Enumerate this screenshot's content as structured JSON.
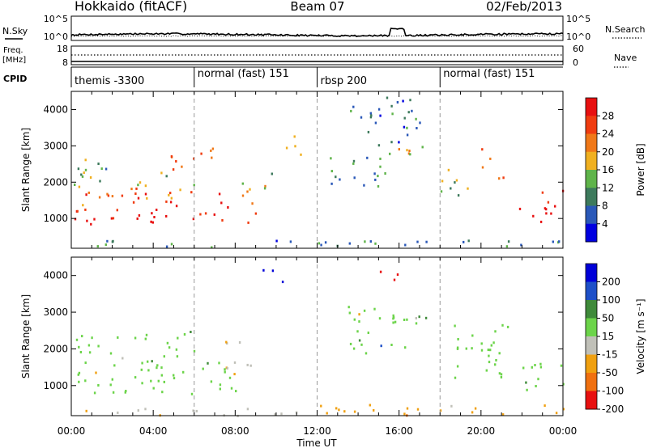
{
  "header": {
    "station": "Hokkaido (fitACF)",
    "beam": "Beam 07",
    "date": "02/Feb/2013"
  },
  "strips": {
    "nsky_label": "N.Sky",
    "nsky_ticks": [
      "10^5",
      "10^0"
    ],
    "nsearch_label": "N.Search",
    "nsearch_ticks": [
      "10^5",
      "10^0"
    ],
    "freq_label_1": "Freq.",
    "freq_label_2": "[MHz]",
    "freq_ticks": [
      "18",
      "8"
    ],
    "nave_label": "Nave",
    "nave_ticks": [
      "60",
      "0"
    ],
    "cpid_label": "CPID",
    "cpid_segments": [
      {
        "label": "themis -3300",
        "start": 0
      },
      {
        "label": "normal (fast) 151",
        "start": 6
      },
      {
        "label": "rbsp 200",
        "start": 12
      },
      {
        "label": "normal (fast) 151",
        "start": 18
      }
    ]
  },
  "chart_data": [
    {
      "type": "heatmap",
      "panel": "power",
      "xlabel": "Time UT",
      "ylabel": "Slant Range [km]",
      "x_ticks": [
        "00:00",
        "04:00",
        "08:00",
        "12:00",
        "16:00",
        "20:00",
        "00:00"
      ],
      "xlim": [
        0,
        24
      ],
      "y_ticks": [
        1000,
        2000,
        3000,
        4000
      ],
      "ylim": [
        180,
        4500
      ],
      "colorbar_label": "Power [dB]",
      "colorbar_ticks": [
        4,
        8,
        12,
        16,
        20,
        24,
        28
      ],
      "colorbar_range": [
        0,
        32
      ],
      "colors": [
        "#0000e0",
        "#2a58b8",
        "#3d7a5c",
        "#5fb44a",
        "#f0b020",
        "#f07818",
        "#f03c10",
        "#e81010"
      ],
      "regions": [
        {
          "t": [
            0,
            3.0
          ],
          "r": [
            800,
            1400
          ],
          "v": 30
        },
        {
          "t": [
            3.0,
            8.7
          ],
          "r": [
            900,
            1500
          ],
          "v": 30
        },
        {
          "t": [
            0,
            7.5
          ],
          "r": [
            1400,
            1900
          ],
          "v": 24
        },
        {
          "t": [
            0,
            6.0
          ],
          "r": [
            1900,
            2300
          ],
          "v": 14
        },
        {
          "t": [
            0,
            2.0
          ],
          "r": [
            2300,
            2800
          ],
          "v": 13
        },
        {
          "t": [
            4.8,
            7.0
          ],
          "r": [
            2200,
            3000
          ],
          "v": 22
        },
        {
          "t": [
            8.0,
            9.2
          ],
          "r": [
            1100,
            2000
          ],
          "v": 21
        },
        {
          "t": [
            9.2,
            10.0
          ],
          "r": [
            1600,
            2300
          ],
          "v": 15
        },
        {
          "t": [
            10.4,
            11.2
          ],
          "r": [
            2600,
            3400
          ],
          "v": 13
        },
        {
          "t": [
            12.5,
            15.5
          ],
          "r": [
            1800,
            2800
          ],
          "v": 10
        },
        {
          "t": [
            13.5,
            17.0
          ],
          "r": [
            3000,
            4400
          ],
          "v": 8
        },
        {
          "t": [
            15.5,
            18.0
          ],
          "r": [
            2700,
            3300
          ],
          "v": 16
        },
        {
          "t": [
            18.0,
            19.7
          ],
          "r": [
            1600,
            2400
          ],
          "v": 14
        },
        {
          "t": [
            19.8,
            20.6
          ],
          "r": [
            2300,
            3000
          ],
          "v": 20
        },
        {
          "t": [
            20.6,
            21.2
          ],
          "r": [
            1800,
            2300
          ],
          "v": 26
        },
        {
          "t": [
            21.8,
            24.0
          ],
          "r": [
            900,
            1800
          ],
          "v": 30
        },
        {
          "t": [
            0,
            24.0
          ],
          "r": [
            200,
            420
          ],
          "v": 9
        }
      ]
    },
    {
      "type": "heatmap",
      "panel": "velocity",
      "xlabel": "Time UT",
      "ylabel": "Slant Range [km]",
      "x_ticks": [
        "00:00",
        "04:00",
        "08:00",
        "12:00",
        "16:00",
        "20:00",
        "00:00"
      ],
      "xlim": [
        0,
        24
      ],
      "y_ticks": [
        1000,
        2000,
        3000,
        4000
      ],
      "ylim": [
        180,
        4500
      ],
      "colorbar_label": "Velocity [m s⁻¹]",
      "colorbar_ticks": [
        200,
        100,
        50,
        15,
        -15,
        -50,
        -100,
        -200
      ],
      "colorbar_range": [
        -250,
        250
      ],
      "colors": [
        "#0000d8",
        "#1e50c8",
        "#3f8a3a",
        "#6cd44a",
        "#c0c0b8",
        "#f0a010",
        "#f07010",
        "#e81010"
      ],
      "regions": [
        {
          "t": [
            0,
            8.0
          ],
          "r": [
            800,
            1900
          ],
          "v": 0
        },
        {
          "t": [
            0,
            6.0
          ],
          "r": [
            1900,
            2500
          ],
          "v": 0
        },
        {
          "t": [
            7.5,
            9.0
          ],
          "r": [
            1300,
            2300
          ],
          "v": -40
        },
        {
          "t": [
            9.3,
            10.5
          ],
          "r": [
            3800,
            4200
          ],
          "v": 210
        },
        {
          "t": [
            13.5,
            16.8
          ],
          "r": [
            1900,
            3300
          ],
          "v": 0
        },
        {
          "t": [
            15.0,
            16.2
          ],
          "r": [
            3900,
            4400
          ],
          "v": -220
        },
        {
          "t": [
            16.0,
            17.5
          ],
          "r": [
            2800,
            3200
          ],
          "v": 30
        },
        {
          "t": [
            18.5,
            21.5
          ],
          "r": [
            1200,
            2800
          ],
          "v": 0
        },
        {
          "t": [
            21.5,
            24.0
          ],
          "r": [
            900,
            1700
          ],
          "v": 0
        },
        {
          "t": [
            12.0,
            24.0
          ],
          "r": [
            200,
            500
          ],
          "v": -60
        },
        {
          "t": [
            0,
            12.0
          ],
          "r": [
            200,
            400
          ],
          "v": -30
        }
      ]
    }
  ]
}
